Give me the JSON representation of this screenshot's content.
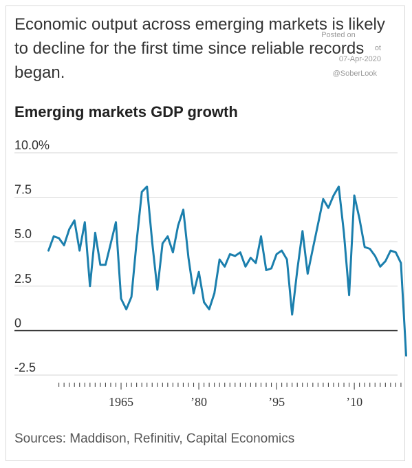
{
  "headline": "Economic output across emerging markets is likely to decline for the first time since reliable records began.",
  "watermark": {
    "posted": "Posted on",
    "bot": "ot",
    "date": "07-Apr-2020",
    "handle": "@SoberLook"
  },
  "source": "Sources: Maddison, Refinitiv, Capital Economics",
  "colors": {
    "line": "#1b7fad",
    "zero_line": "#111111",
    "grid": "#d6d6d6",
    "text": "#333333"
  },
  "chart_data": {
    "type": "line",
    "title": "Emerging markets GDP growth",
    "xlabel": "",
    "ylabel": "",
    "ylim": [
      -2.5,
      10
    ],
    "xlim": [
      1950,
      2021
    ],
    "grid": true,
    "y_ticks": [
      {
        "value": 10,
        "label": "10.0%"
      },
      {
        "value": 7.5,
        "label": "7.5"
      },
      {
        "value": 5,
        "label": "5.0"
      },
      {
        "value": 2.5,
        "label": "2.5"
      },
      {
        "value": 0,
        "label": "0"
      },
      {
        "value": -2.5,
        "label": "-2.5"
      }
    ],
    "x_labels": [
      {
        "value": 1965,
        "label": "1965"
      },
      {
        "value": 1980,
        "label": "’80"
      },
      {
        "value": 1995,
        "label": "’95"
      },
      {
        "value": 2010,
        "label": "’10"
      }
    ],
    "series": [
      {
        "color": "#1b7fad",
        "x": [
          1951,
          1952,
          1953,
          1954,
          1955,
          1956,
          1957,
          1958,
          1959,
          1960,
          1961,
          1962,
          1963,
          1964,
          1965,
          1966,
          1967,
          1968,
          1969,
          1970,
          1971,
          1972,
          1973,
          1974,
          1975,
          1976,
          1977,
          1978,
          1979,
          1980,
          1981,
          1982,
          1983,
          1984,
          1985,
          1986,
          1987,
          1988,
          1989,
          1990,
          1991,
          1992,
          1993,
          1994,
          1995,
          1996,
          1997,
          1998,
          1999,
          2000,
          2001,
          2002,
          2003,
          2004,
          2005,
          2006,
          2007,
          2008,
          2009,
          2010,
          2011,
          2012,
          2013,
          2014,
          2015,
          2016,
          2017,
          2018,
          2019,
          2020
        ],
        "y": [
          4.5,
          5.3,
          5.2,
          4.8,
          5.7,
          6.2,
          4.5,
          6.1,
          2.5,
          5.5,
          3.7,
          3.7,
          4.9,
          6.1,
          1.8,
          1.2,
          1.9,
          5.0,
          7.8,
          8.1,
          5.0,
          2.3,
          4.9,
          5.3,
          4.4,
          5.9,
          6.8,
          4.1,
          2.1,
          3.3,
          1.6,
          1.2,
          2.1,
          4.0,
          3.6,
          4.3,
          4.2,
          4.4,
          3.6,
          4.1,
          3.8,
          5.3,
          3.4,
          3.5,
          4.3,
          4.5,
          4.0,
          0.9,
          3.4,
          5.6,
          3.2,
          4.6,
          6.0,
          7.4,
          6.9,
          7.6,
          8.1,
          5.5,
          2.0,
          7.6,
          6.3,
          4.7,
          4.6,
          4.2,
          3.6,
          3.9,
          4.5,
          4.4,
          3.8,
          -1.4
        ]
      }
    ]
  }
}
